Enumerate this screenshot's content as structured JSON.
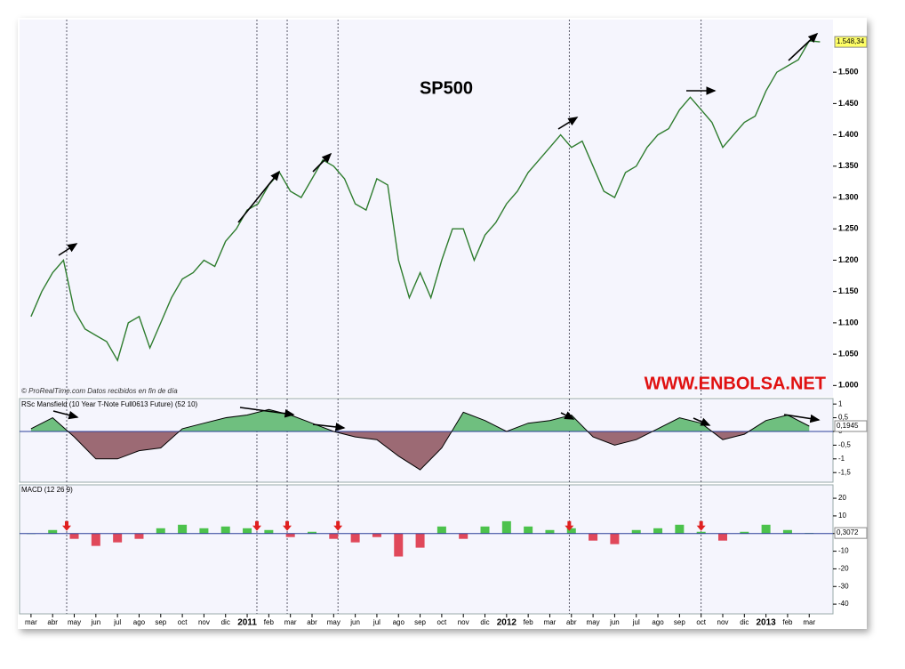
{
  "chart_data": [
    {
      "type": "line",
      "title": "SP500",
      "watermark": "WWW.ENBOLSA.NET",
      "source": "© ProRealTime.com  Datos recibidos en fin de día",
      "color": "#2f7d2f",
      "x": [
        0,
        0.5,
        1,
        1.5,
        2,
        2.5,
        3,
        3.5,
        4,
        4.5,
        5,
        5.5,
        6,
        6.5,
        7,
        7.5,
        8,
        8.5,
        9,
        9.5,
        10,
        10.5,
        11,
        11.5,
        12,
        12.5,
        13,
        13.5,
        14,
        14.5,
        15,
        15.5,
        16,
        16.5,
        17,
        17.5,
        18,
        18.5,
        19,
        19.5,
        20,
        20.5,
        21,
        21.5,
        22,
        22.5,
        23,
        23.5,
        24,
        24.5,
        25,
        25.5,
        26,
        26.5,
        27,
        27.5,
        28,
        28.5,
        29,
        29.5,
        30,
        30.5,
        31,
        31.5,
        32,
        32.5,
        33,
        33.5,
        34,
        34.5,
        35,
        35.5,
        36,
        36.5
      ],
      "values": [
        1110,
        1150,
        1180,
        1200,
        1120,
        1090,
        1080,
        1070,
        1040,
        1100,
        1110,
        1060,
        1100,
        1140,
        1170,
        1180,
        1200,
        1190,
        1230,
        1250,
        1280,
        1290,
        1320,
        1340,
        1310,
        1300,
        1330,
        1360,
        1350,
        1330,
        1290,
        1280,
        1330,
        1320,
        1200,
        1140,
        1180,
        1140,
        1200,
        1250,
        1250,
        1200,
        1240,
        1260,
        1290,
        1310,
        1340,
        1360,
        1380,
        1400,
        1380,
        1390,
        1350,
        1310,
        1300,
        1340,
        1350,
        1380,
        1400,
        1410,
        1440,
        1460,
        1440,
        1420,
        1380,
        1400,
        1420,
        1430,
        1470,
        1500,
        1510,
        1520,
        1550,
        1548.34
      ],
      "value_labels": [
        "1.548,34"
      ],
      "last_label_color": "#ffff66",
      "event_x": [
        1.65,
        10.45,
        11.85,
        14.2,
        24.9,
        31.0
      ],
      "xlim": [
        -0.53,
        37.1
      ],
      "xticks": [
        {
          "value": 0,
          "label": "mar"
        },
        {
          "value": 1,
          "label": "abr"
        },
        {
          "value": 2,
          "label": "may"
        },
        {
          "value": 3,
          "label": "jun"
        },
        {
          "value": 4,
          "label": "jul"
        },
        {
          "value": 5,
          "label": "ago"
        },
        {
          "value": 6,
          "label": "sep"
        },
        {
          "value": 7,
          "label": "oct"
        },
        {
          "value": 8,
          "label": "nov"
        },
        {
          "value": 9,
          "label": "dic"
        },
        {
          "value": 10,
          "label": "2011"
        },
        {
          "value": 11,
          "label": "feb"
        },
        {
          "value": 12,
          "label": "mar"
        },
        {
          "value": 13,
          "label": "abr"
        },
        {
          "value": 14,
          "label": "may"
        },
        {
          "value": 15,
          "label": "jun"
        },
        {
          "value": 16,
          "label": "jul"
        },
        {
          "value": 17,
          "label": "ago"
        },
        {
          "value": 18,
          "label": "sep"
        },
        {
          "value": 19,
          "label": "oct"
        },
        {
          "value": 20,
          "label": "nov"
        },
        {
          "value": 21,
          "label": "dic"
        },
        {
          "value": 22,
          "label": "2012"
        },
        {
          "value": 23,
          "label": "feb"
        },
        {
          "value": 24,
          "label": "mar"
        },
        {
          "value": 25,
          "label": "abr"
        },
        {
          "value": 26,
          "label": "may"
        },
        {
          "value": 27,
          "label": "jun"
        },
        {
          "value": 28,
          "label": "jul"
        },
        {
          "value": 29,
          "label": "ago"
        },
        {
          "value": 30,
          "label": "sep"
        },
        {
          "value": 31,
          "label": "oct"
        },
        {
          "value": 32,
          "label": "nov"
        },
        {
          "value": 33,
          "label": "dic"
        },
        {
          "value": 34,
          "label": "2013"
        },
        {
          "value": 35,
          "label": "feb"
        },
        {
          "value": 36,
          "label": "mar"
        }
      ],
      "ylim": [
        982,
        1584
      ],
      "yticks": [
        {
          "value": 1000,
          "label": "1.000"
        },
        {
          "value": 1050,
          "label": "1.050"
        },
        {
          "value": 1100,
          "label": "1.100"
        },
        {
          "value": 1150,
          "label": "1.150"
        },
        {
          "value": 1200,
          "label": "1.200"
        },
        {
          "value": 1250,
          "label": "1.250"
        },
        {
          "value": 1300,
          "label": "1.300"
        },
        {
          "value": 1350,
          "label": "1.350"
        },
        {
          "value": 1400,
          "label": "1.400"
        },
        {
          "value": 1450,
          "label": "1.450"
        },
        {
          "value": 1500,
          "label": "1.500"
        }
      ]
    },
    {
      "type": "area",
      "title": "RSc Mansfield (10 Year T-Note Full0613 Future) (52 10)",
      "color": "#000000",
      "up_color": "#6fbf7f",
      "down_color": "#9c6a74",
      "x": [
        0,
        1,
        2,
        3,
        4,
        5,
        6,
        7,
        8,
        9,
        10,
        11,
        12,
        13,
        14,
        15,
        16,
        17,
        18,
        19,
        20,
        21,
        22,
        23,
        24,
        25,
        26,
        27,
        28,
        29,
        30,
        31,
        32,
        33,
        34,
        35,
        36
      ],
      "values": [
        0.1,
        0.5,
        -0.2,
        -1.0,
        -1.0,
        -0.7,
        -0.6,
        0.1,
        0.3,
        0.5,
        0.6,
        0.8,
        0.6,
        0.3,
        0.0,
        -0.2,
        -0.3,
        -0.9,
        -1.4,
        -0.6,
        0.7,
        0.4,
        0.0,
        0.3,
        0.4,
        0.6,
        -0.2,
        -0.5,
        -0.3,
        0.1,
        0.5,
        0.3,
        -0.3,
        -0.1,
        0.4,
        0.6,
        0.1945
      ],
      "value_labels": [
        "0,1945"
      ],
      "ylim": [
        -1.85,
        1.2
      ],
      "yticks": [
        1,
        {
          "value": 0.5,
          "label": "0,5"
        },
        0,
        {
          "value": -0.5,
          "label": "-0,5"
        },
        -1,
        {
          "value": -1.5,
          "label": "-1,5"
        }
      ]
    },
    {
      "type": "bar",
      "title": "MACD (12 26 9)",
      "up_color": "#4cc24c",
      "down_color": "#e0485a",
      "x": [
        0,
        1,
        2,
        3,
        4,
        5,
        6,
        7,
        8,
        9,
        10,
        11,
        12,
        13,
        14,
        15,
        16,
        17,
        18,
        19,
        20,
        21,
        22,
        23,
        24,
        25,
        26,
        27,
        28,
        29,
        30,
        31,
        32,
        33,
        34,
        35,
        36
      ],
      "values": [
        0,
        2,
        -3,
        -7,
        -5,
        -3,
        3,
        5,
        3,
        4,
        3,
        2,
        -2,
        1,
        -3,
        -5,
        -2,
        -13,
        -8,
        4,
        -3,
        4,
        7,
        4,
        2,
        3,
        -4,
        -6,
        2,
        3,
        5,
        1,
        -4,
        1,
        5,
        2,
        0.3072
      ],
      "value_labels": [
        "0,3072"
      ],
      "ylim": [
        -45.5,
        27.6
      ],
      "yticks": [
        20,
        10,
        0,
        -10,
        -20,
        -30,
        -40
      ]
    }
  ]
}
